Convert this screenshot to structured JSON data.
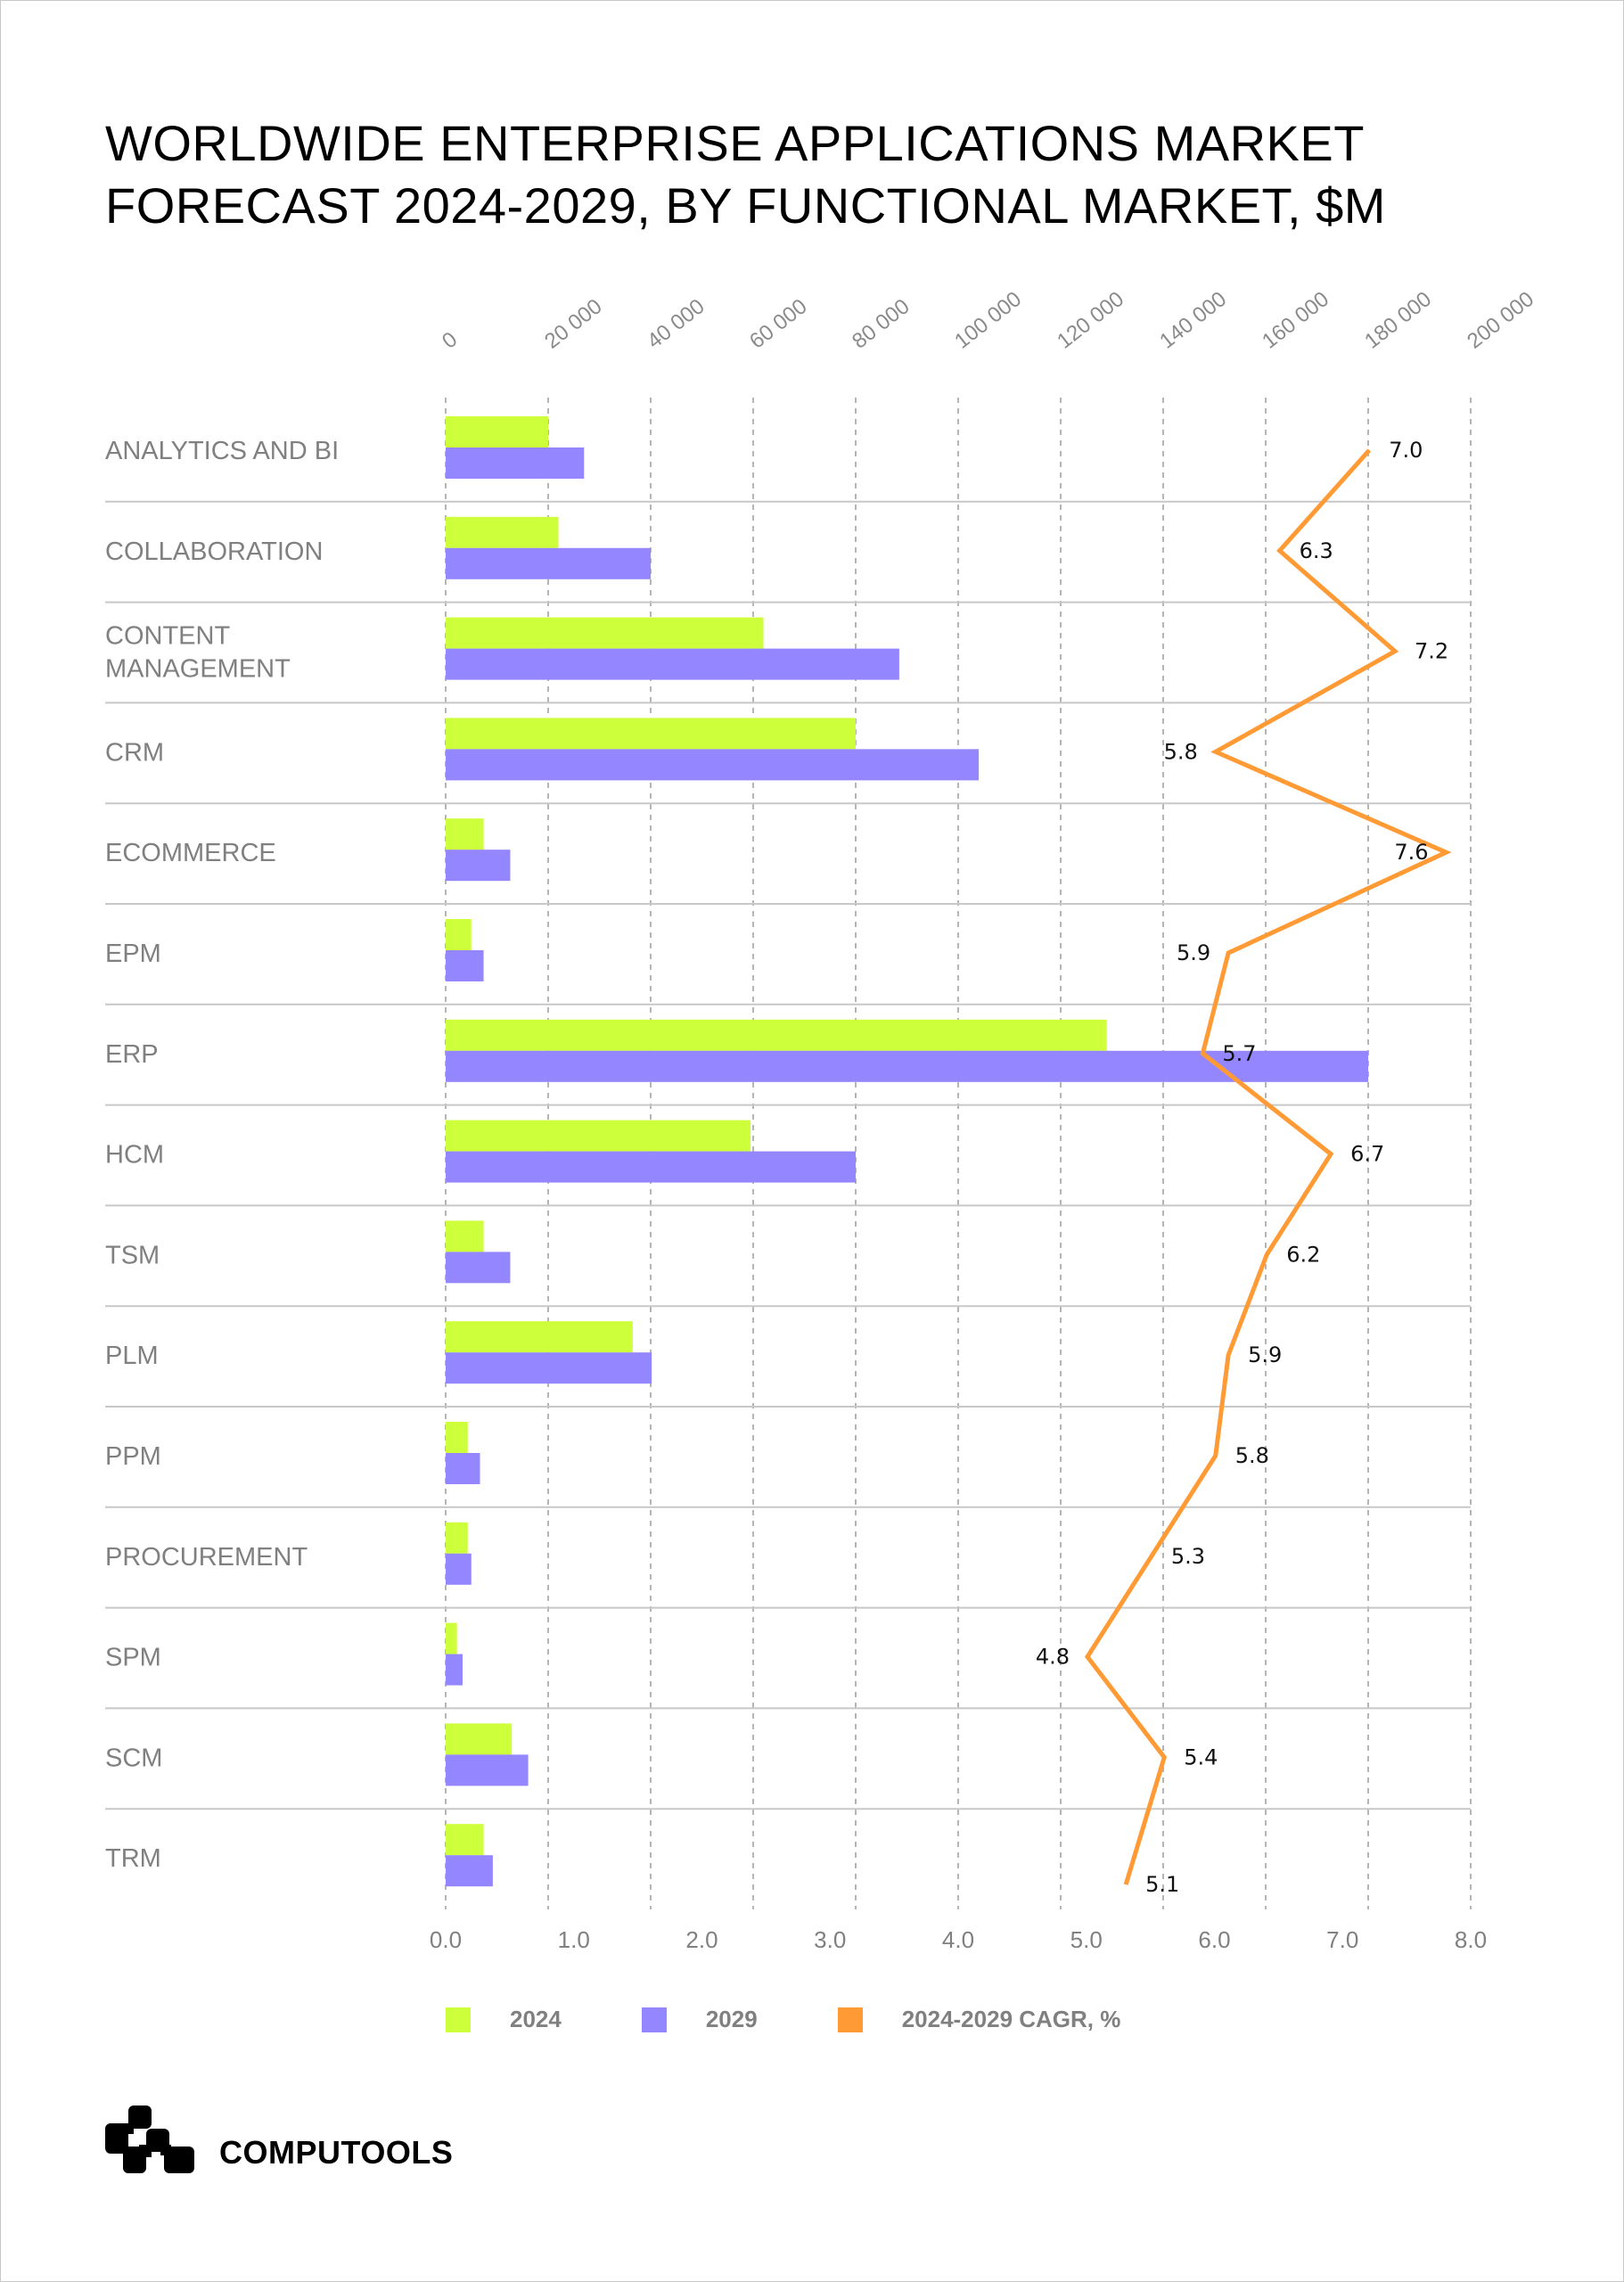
{
  "title": "WORLDWIDE ENTERPRISE APPLICATIONS MARKET FORECAST 2024-2029, BY FUNCTIONAL MARKET, $M",
  "brand": {
    "name": "COMPUTOOLS",
    "logo_icon": "computools-logo-icon"
  },
  "colors": {
    "s2024": "#cdff3a",
    "s2029": "#9386ff",
    "cagr": "#ff9a35",
    "grid": "#b5b5b5",
    "separator": "#c8c8c8"
  },
  "legend": [
    {
      "label": "2024",
      "color": "#cdff3a"
    },
    {
      "label": "2029",
      "color": "#9386ff"
    },
    {
      "label": "2024-2029 CAGR, %",
      "color": "#ff9a35"
    }
  ],
  "chart_data": {
    "type": "bar",
    "orientation": "horizontal",
    "title": "WORLDWIDE ENTERPRISE APPLICATIONS MARKET FORECAST 2024-2029, BY FUNCTIONAL MARKET, $M",
    "categories": [
      "ANALYTICS AND BI",
      "COLLABORATION",
      "CONTENT MANAGEMENT",
      "CRM",
      "ECOMMERCE",
      "EPM",
      "ERP",
      "HCM",
      "TSM",
      "PLM",
      "PPM",
      "PROCUREMENT",
      "SPM",
      "SCM",
      "TRM"
    ],
    "series": [
      {
        "name": "2024",
        "type": "bar",
        "axis": "top",
        "values": [
          20000,
          22000,
          62000,
          80000,
          7400,
          5000,
          129000,
          59500,
          7400,
          36500,
          4300,
          4300,
          2200,
          12900,
          7400
        ]
      },
      {
        "name": "2029",
        "type": "bar",
        "axis": "top",
        "values": [
          27000,
          40000,
          88500,
          104000,
          12600,
          7400,
          180000,
          80000,
          12600,
          40200,
          6700,
          5000,
          3300,
          16100,
          9200
        ]
      },
      {
        "name": "2024-2029 CAGR, %",
        "type": "line",
        "axis": "bottom",
        "values": [
          7.0,
          6.3,
          7.2,
          5.8,
          7.6,
          5.9,
          5.7,
          6.7,
          6.2,
          5.9,
          5.8,
          5.3,
          4.8,
          5.4,
          5.1
        ]
      }
    ],
    "top_axis": {
      "range": [
        0,
        200000
      ],
      "ticks": [
        "0",
        "20 000",
        "40 000",
        "60 000",
        "80 000",
        "100 000",
        "120 000",
        "140 000",
        "160 000",
        "180 000",
        "200 000"
      ]
    },
    "bottom_axis": {
      "range": [
        0,
        8
      ],
      "ticks": [
        "0.0",
        "1.0",
        "2.0",
        "3.0",
        "4.0",
        "5.0",
        "6.0",
        "7.0",
        "8.0"
      ]
    },
    "grid": true,
    "legend_position": "bottom"
  }
}
